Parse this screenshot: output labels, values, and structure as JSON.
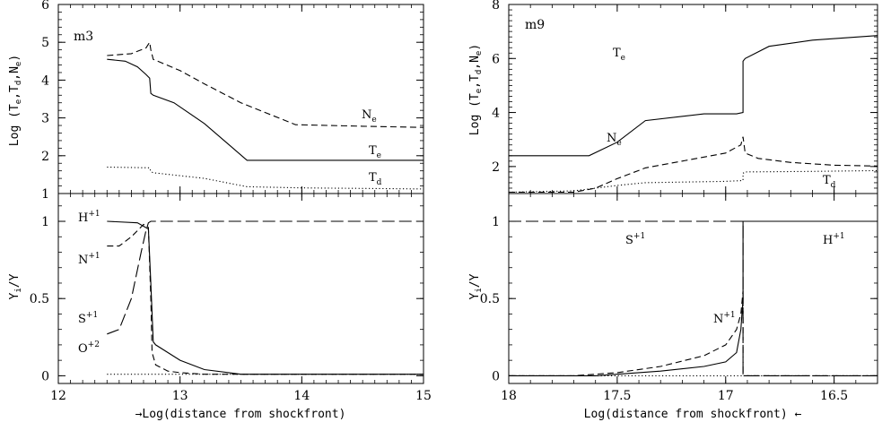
{
  "chart_data": [
    {
      "type": "line",
      "title": "m3",
      "panel": "left-top",
      "ylabel": "Log (Te,Td,Ne)",
      "xlim": [
        12,
        15
      ],
      "ylim": [
        1,
        6
      ],
      "xticks": [
        12,
        13,
        14,
        15
      ],
      "yticks": [
        1,
        2,
        3,
        4,
        5,
        6
      ],
      "series": [
        {
          "name": "Ne",
          "style": "dashed",
          "x": [
            12.4,
            12.6,
            12.72,
            12.75,
            12.76,
            12.78,
            13.0,
            13.2,
            13.5,
            13.95,
            14.5,
            15.0
          ],
          "y": [
            4.65,
            4.7,
            4.85,
            5.0,
            4.8,
            4.55,
            4.25,
            3.9,
            3.4,
            2.82,
            2.78,
            2.75
          ]
        },
        {
          "name": "Te",
          "style": "solid",
          "x": [
            12.4,
            12.55,
            12.65,
            12.72,
            12.75,
            12.76,
            12.78,
            12.95,
            13.2,
            13.55,
            14.0,
            14.5,
            15.0
          ],
          "y": [
            4.55,
            4.5,
            4.35,
            4.15,
            4.05,
            3.65,
            3.6,
            3.4,
            2.85,
            1.88,
            1.88,
            1.88,
            1.88
          ]
        },
        {
          "name": "Td",
          "style": "dotted",
          "x": [
            12.4,
            12.75,
            12.76,
            12.78,
            13.2,
            13.55,
            14.0,
            15.0
          ],
          "y": [
            1.7,
            1.68,
            1.58,
            1.55,
            1.4,
            1.18,
            1.15,
            1.12
          ]
        }
      ]
    },
    {
      "type": "line",
      "panel": "left-bottom",
      "ylabel": "Yi/Y",
      "xlabel": "→Log(distance from shockfront)",
      "xlim": [
        12,
        15
      ],
      "ylim": [
        -0.05,
        1.18
      ],
      "xticks": [
        12,
        13,
        14,
        15
      ],
      "yticks": [
        0,
        0.5,
        1
      ],
      "ytick_labels": [
        "0",
        "0.5",
        "1"
      ],
      "series": [
        {
          "name": "H+1",
          "style": "solid",
          "x": [
            12.4,
            12.65,
            12.74,
            12.76,
            12.78,
            12.8,
            12.9,
            13.0,
            13.2,
            13.5,
            14.0,
            15.0
          ],
          "y": [
            1.0,
            0.99,
            0.95,
            0.6,
            0.22,
            0.2,
            0.15,
            0.1,
            0.04,
            0.01,
            0.01,
            0.01
          ]
        },
        {
          "name": "N+1",
          "style": "dashed",
          "x": [
            12.4,
            12.5,
            12.6,
            12.7,
            12.74,
            12.76,
            12.77,
            12.8,
            12.9,
            13.0,
            13.2,
            14.0,
            15.0
          ],
          "y": [
            0.84,
            0.84,
            0.9,
            0.98,
            0.96,
            0.5,
            0.15,
            0.07,
            0.03,
            0.02,
            0.01,
            0.01,
            0.01
          ]
        },
        {
          "name": "S+1",
          "style": "long-dashed",
          "x": [
            12.4,
            12.5,
            12.6,
            12.68,
            12.72,
            12.74,
            12.76,
            12.8,
            13.0,
            14.0,
            15.0
          ],
          "y": [
            0.27,
            0.3,
            0.5,
            0.8,
            0.94,
            0.99,
            1.0,
            1.0,
            1.0,
            1.0,
            1.0
          ]
        },
        {
          "name": "O+2",
          "style": "dotted",
          "x": [
            12.4,
            12.8,
            13.2,
            14.0,
            15.0
          ],
          "y": [
            0.01,
            0.01,
            0.01,
            0.01,
            0.01
          ]
        }
      ]
    },
    {
      "type": "line",
      "title": "m9",
      "panel": "right-top",
      "ylabel": "Log (Te,Td,Ne)",
      "xlim": [
        18,
        16.3
      ],
      "ylim": [
        1,
        8
      ],
      "xticks": [
        18,
        17.5,
        17,
        16.5
      ],
      "yticks": [
        2,
        4,
        6,
        8
      ],
      "series": [
        {
          "name": "Te",
          "style": "solid",
          "x": [
            18.0,
            17.63,
            17.5,
            17.37,
            17.1,
            16.95,
            16.92,
            16.92,
            16.91,
            16.8,
            16.6,
            16.3
          ],
          "y": [
            2.4,
            2.4,
            2.9,
            3.7,
            3.95,
            3.95,
            4.0,
            5.9,
            6.0,
            6.45,
            6.68,
            6.85
          ]
        },
        {
          "name": "Ne",
          "style": "dashed",
          "x": [
            18.0,
            17.7,
            17.6,
            17.5,
            17.37,
            17.2,
            17.0,
            16.93,
            16.92,
            16.91,
            16.85,
            16.7,
            16.5,
            16.3
          ],
          "y": [
            1.05,
            1.05,
            1.2,
            1.55,
            1.95,
            2.2,
            2.5,
            2.8,
            3.1,
            2.5,
            2.3,
            2.15,
            2.05,
            2.02
          ]
        },
        {
          "name": "Td",
          "style": "dotted",
          "x": [
            18.0,
            17.7,
            17.5,
            17.37,
            17.0,
            16.92,
            16.92,
            16.91,
            16.6,
            16.3
          ],
          "y": [
            1.05,
            1.1,
            1.3,
            1.4,
            1.45,
            1.48,
            1.75,
            1.8,
            1.82,
            1.85
          ]
        }
      ]
    },
    {
      "type": "line",
      "panel": "right-bottom",
      "ylabel": "Yi/Y",
      "xlabel": "Log(distance from shockfront) ←",
      "xlim": [
        18,
        16.3
      ],
      "ylim": [
        -0.05,
        1.18
      ],
      "xticks": [
        18,
        17.5,
        17,
        16.5
      ],
      "yticks": [
        0,
        0.5,
        1
      ],
      "ytick_labels": [
        "0",
        "0.5",
        "1"
      ],
      "series": [
        {
          "name": "S+1",
          "style": "long-dashed",
          "x": [
            18.0,
            17.5,
            17.0,
            16.92,
            16.92,
            16.91,
            16.3
          ],
          "y": [
            1.0,
            1.0,
            1.0,
            1.0,
            0.0,
            0.0,
            0.0
          ]
        },
        {
          "name": "H+1",
          "style": "solid",
          "x": [
            18.0,
            17.6,
            17.5,
            17.3,
            17.1,
            17.0,
            16.95,
            16.93,
            16.92,
            16.92,
            16.91,
            16.3
          ],
          "y": [
            0.0,
            0.0,
            0.01,
            0.03,
            0.06,
            0.09,
            0.15,
            0.3,
            0.5,
            1.0,
            1.0,
            1.0
          ]
        },
        {
          "name": "N+1",
          "style": "dashed",
          "x": [
            18.0,
            17.7,
            17.5,
            17.3,
            17.1,
            17.0,
            16.95,
            16.93,
            16.92,
            16.92,
            16.91,
            16.3
          ],
          "y": [
            0.0,
            0.0,
            0.02,
            0.06,
            0.13,
            0.2,
            0.3,
            0.4,
            0.55,
            0.0,
            0.0,
            0.0
          ]
        },
        {
          "name": "O+2",
          "style": "dotted",
          "x": [
            18.0,
            16.3
          ],
          "y": [
            0.0,
            0.0
          ]
        }
      ]
    }
  ],
  "labels": {
    "left_top_ylabel": "Log (T_e,T_d,N_e)",
    "right_top_ylabel": "Log (T_e,T_d,N_e)",
    "yi_label": "Y_i/Y",
    "left_xlabel": "→Log(distance from shockfront)",
    "right_xlabel": "Log(distance from shockfront) ←",
    "m3": "m3",
    "m9": "m9",
    "Ne": "N",
    "Ne_sub": "e",
    "Te": "T",
    "Te_sub": "e",
    "Td": "T",
    "Td_sub": "d",
    "H": "H",
    "H_sup": "+1",
    "N": "N",
    "N_sup": "+1",
    "S": "S",
    "S_sup": "+1",
    "O": "O",
    "O_sup": "+2"
  }
}
